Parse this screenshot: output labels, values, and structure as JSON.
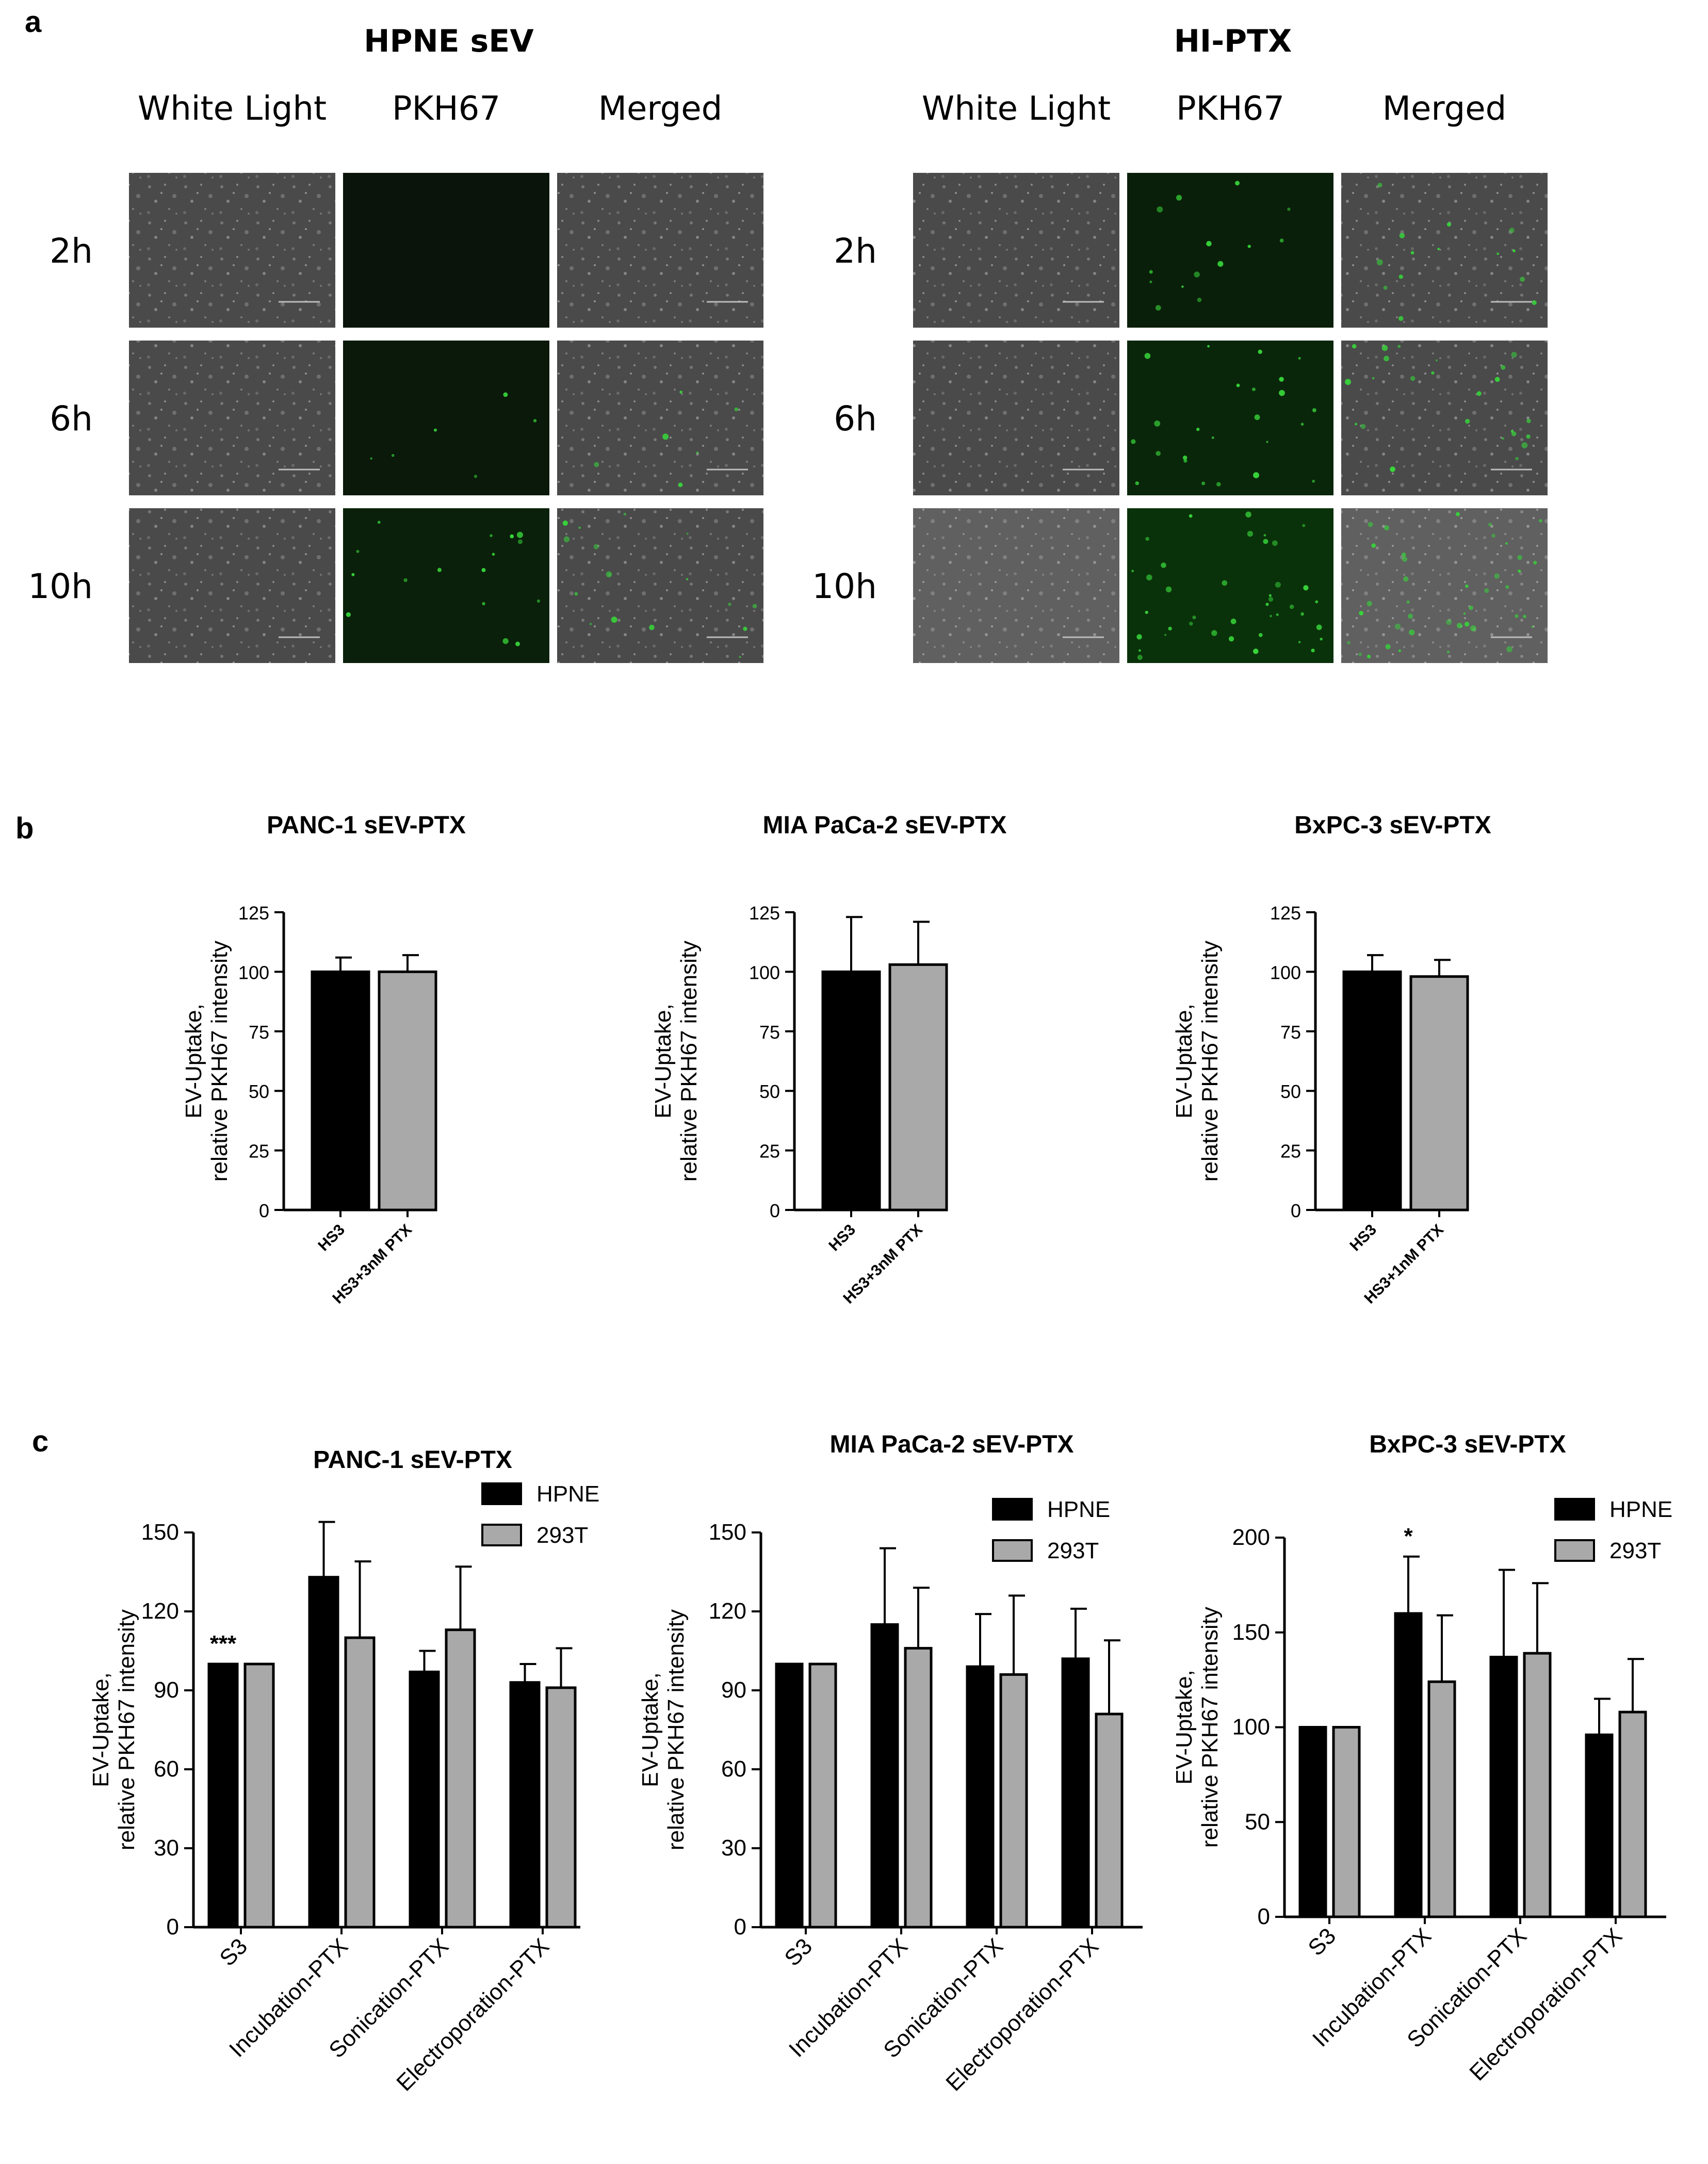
{
  "panel_a": {
    "label": "a",
    "groups": [
      {
        "title": "HPNE sEV",
        "intensity": [
          0.0,
          0.15,
          0.4
        ]
      },
      {
        "title": "HI-PTX",
        "intensity": [
          0.35,
          0.6,
          1.0
        ]
      }
    ],
    "columns": [
      "White Light",
      "PKH67",
      "Merged"
    ],
    "rows": [
      "2h",
      "6h",
      "10h"
    ]
  },
  "panel_b_label": "b",
  "panel_c_label": "c",
  "colors": {
    "black_bar": "#000000",
    "gray_bar": "#a9a9a9",
    "green": "#37d43a"
  },
  "chart_data": [
    {
      "type": "bar",
      "panel": "b",
      "title": "PANC-1 sEV-PTX",
      "ylabel": [
        "EV-Uptake,",
        "relative PKH67 intensity"
      ],
      "ylim": [
        0,
        125
      ],
      "yticks": [
        0,
        25,
        50,
        75,
        100,
        125
      ],
      "categories": [
        "HS3",
        "HS3+3nM PTX"
      ],
      "values": [
        100,
        100
      ],
      "errors": [
        6,
        7
      ],
      "bar_colors": [
        "#000000",
        "#a9a9a9"
      ]
    },
    {
      "type": "bar",
      "panel": "b",
      "title": "MIA PaCa-2 sEV-PTX",
      "ylabel": [
        "EV-Uptake,",
        "relative PKH67 intensity"
      ],
      "ylim": [
        0,
        125
      ],
      "yticks": [
        0,
        25,
        50,
        75,
        100,
        125
      ],
      "categories": [
        "HS3",
        "HS3+3nM PTX"
      ],
      "values": [
        100,
        103
      ],
      "errors": [
        23,
        18
      ],
      "bar_colors": [
        "#000000",
        "#a9a9a9"
      ]
    },
    {
      "type": "bar",
      "panel": "b",
      "title": "BxPC-3 sEV-PTX",
      "ylabel": [
        "EV-Uptake,",
        "relative PKH67 intensity"
      ],
      "ylim": [
        0,
        125
      ],
      "yticks": [
        0,
        25,
        50,
        75,
        100,
        125
      ],
      "categories": [
        "HS3",
        "HS3+1nM PTX"
      ],
      "values": [
        100,
        98
      ],
      "errors": [
        7,
        7
      ],
      "bar_colors": [
        "#000000",
        "#a9a9a9"
      ]
    },
    {
      "type": "bar",
      "panel": "c",
      "title": "PANC-1 sEV-PTX",
      "ylabel": [
        "EV-Uptake,",
        "relative PKH67 intensity"
      ],
      "ylim": [
        0,
        150
      ],
      "yticks": [
        0,
        30,
        60,
        90,
        120,
        150
      ],
      "categories": [
        "S3",
        "Incubation-PTX",
        "Sonication-PTX",
        "Electroporation-PTX"
      ],
      "series": [
        {
          "name": "HPNE",
          "values": [
            100,
            133,
            97,
            93
          ],
          "errors": [
            0,
            21,
            8,
            7
          ]
        },
        {
          "name": "293T",
          "values": [
            100,
            110,
            113,
            91
          ],
          "errors": [
            0,
            29,
            24,
            15
          ]
        }
      ],
      "annotations": [
        "***",
        "",
        "",
        ""
      ]
    },
    {
      "type": "bar",
      "panel": "c",
      "title": "MIA PaCa-2 sEV-PTX",
      "ylabel": [
        "EV-Uptake,",
        "relative PKH67 intensity"
      ],
      "ylim": [
        0,
        150
      ],
      "yticks": [
        0,
        30,
        60,
        90,
        120,
        150
      ],
      "categories": [
        "S3",
        "Incubation-PTX",
        "Sonication-PTX",
        "Electroporation-PTX"
      ],
      "series": [
        {
          "name": "HPNE",
          "values": [
            100,
            115,
            99,
            102
          ],
          "errors": [
            0,
            29,
            20,
            19
          ]
        },
        {
          "name": "293T",
          "values": [
            100,
            106,
            96,
            81
          ],
          "errors": [
            0,
            23,
            30,
            28
          ]
        }
      ],
      "annotations": [
        "",
        "",
        "",
        ""
      ]
    },
    {
      "type": "bar",
      "panel": "c",
      "title": "BxPC-3 sEV-PTX",
      "ylabel": [
        "EV-Uptake,",
        "relative PKH67 intensity"
      ],
      "ylim": [
        0,
        200
      ],
      "yticks": [
        0,
        50,
        100,
        150,
        200
      ],
      "categories": [
        "S3",
        "Incubation-PTX",
        "Sonication-PTX",
        "Electroporation-PTX"
      ],
      "series": [
        {
          "name": "HPNE",
          "values": [
            100,
            160,
            137,
            96
          ],
          "errors": [
            0,
            30,
            46,
            19
          ]
        },
        {
          "name": "293T",
          "values": [
            100,
            124,
            139,
            108
          ],
          "errors": [
            0,
            35,
            37,
            28
          ]
        }
      ],
      "annotations": [
        "",
        "*",
        "",
        ""
      ]
    }
  ]
}
